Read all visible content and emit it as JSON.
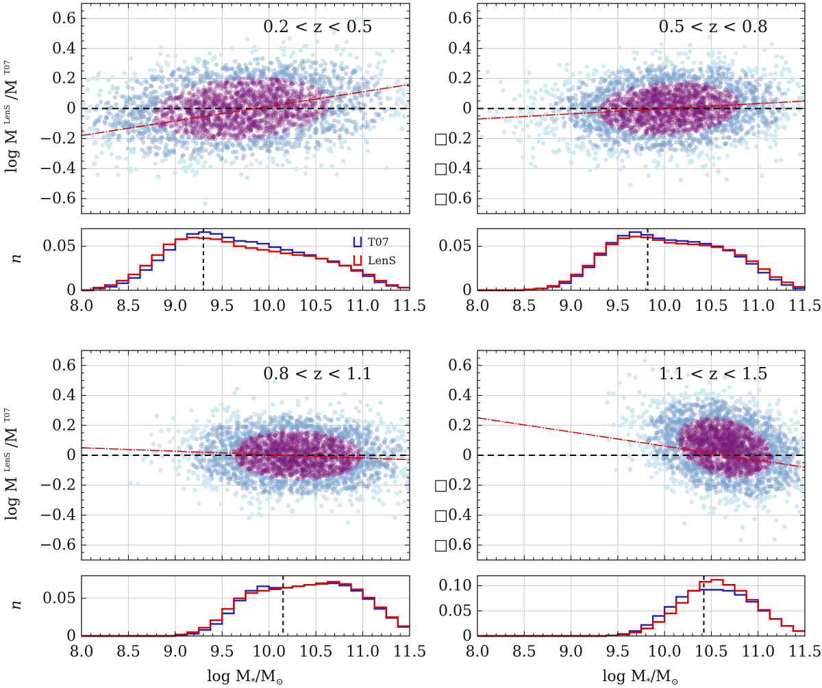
{
  "axis_labels": {
    "scatter_y_main": "log M",
    "scatter_y_sub1": "*",
    "scatter_y_sup1": "LenS",
    "scatter_y_slash": "/M",
    "scatter_y_sub2": "*",
    "scatter_y_sup2": "T07",
    "hist_y": "n",
    "x_main": "log M",
    "x_sub1": "*",
    "x_slash": "/M",
    "x_sub2": "⊙"
  },
  "legend": {
    "t07": "T07",
    "lens": "LenS"
  },
  "colors": {
    "t07": "#1f1fbf",
    "lens": "#e00000",
    "fit": "#e00000",
    "grid": "#c8c8c8",
    "scatter_light": "#cfe8f2",
    "scatter_mid": "#7fa3cf",
    "scatter_dense": "#7a1a7a"
  },
  "x_ticks": [
    "8.0",
    "8.5",
    "9.0",
    "9.5",
    "10.0",
    "10.5",
    "11.0",
    "11.5"
  ],
  "scatter_y_ticks_left": [
    "0.6",
    "0.4",
    "0.2",
    "0",
    "−0.2",
    "−0.4",
    "−0.6"
  ],
  "scatter_y_ticks_right": [
    "0.6",
    "0.4",
    "0.2",
    "0",
    "□0.2",
    "□0.4",
    "□0.6"
  ],
  "chart_data": [
    {
      "type": "scatter",
      "panel": "top-left",
      "label": "0.2 < z < 0.5",
      "xlim": [
        8.0,
        11.5
      ],
      "ylim": [
        -0.7,
        0.7
      ],
      "cloud": {
        "cx": 9.7,
        "cy": 0.0,
        "sx": 0.75,
        "sy": 0.16,
        "slope": 0.04
      },
      "fit_line": {
        "x": [
          8.0,
          11.5
        ],
        "y": [
          -0.18,
          0.16
        ]
      },
      "reference_line_y": 0,
      "histogram": {
        "ylim": [
          0,
          0.07
        ],
        "yticks": [
          "0",
          "0.05"
        ],
        "bin_edges": [
          8.0,
          8.125,
          8.25,
          8.375,
          8.5,
          8.625,
          8.75,
          8.875,
          9.0,
          9.125,
          9.25,
          9.375,
          9.5,
          9.625,
          9.75,
          9.875,
          10.0,
          10.125,
          10.25,
          10.375,
          10.5,
          10.625,
          10.75,
          10.875,
          11.0,
          11.125,
          11.25,
          11.375,
          11.5
        ],
        "t07": [
          0.0,
          0.002,
          0.004,
          0.008,
          0.014,
          0.023,
          0.034,
          0.046,
          0.058,
          0.064,
          0.066,
          0.064,
          0.06,
          0.056,
          0.055,
          0.053,
          0.049,
          0.046,
          0.043,
          0.04,
          0.036,
          0.033,
          0.028,
          0.023,
          0.016,
          0.009,
          0.005,
          0.003
        ],
        "lens": [
          0.0,
          0.003,
          0.006,
          0.011,
          0.018,
          0.028,
          0.04,
          0.052,
          0.058,
          0.06,
          0.059,
          0.058,
          0.055,
          0.05,
          0.048,
          0.046,
          0.044,
          0.042,
          0.04,
          0.039,
          0.036,
          0.032,
          0.028,
          0.022,
          0.018,
          0.011,
          0.006,
          0.003
        ],
        "median": 9.3
      }
    },
    {
      "type": "scatter",
      "panel": "top-right",
      "label": "0.5 < z < 0.8",
      "xlim": [
        8.0,
        11.5
      ],
      "ylim": [
        -0.7,
        0.7
      ],
      "cloud": {
        "cx": 10.05,
        "cy": 0.0,
        "sx": 0.6,
        "sy": 0.14,
        "slope": 0.03
      },
      "fit_line": {
        "x": [
          8.0,
          11.5
        ],
        "y": [
          -0.07,
          0.05
        ]
      },
      "reference_line_y": 0,
      "histogram": {
        "ylim": [
          0,
          0.07
        ],
        "yticks": [
          "0",
          "0.05"
        ],
        "bin_edges": [
          8.0,
          8.125,
          8.25,
          8.375,
          8.5,
          8.625,
          8.75,
          8.875,
          9.0,
          9.125,
          9.25,
          9.375,
          9.5,
          9.625,
          9.75,
          9.875,
          10.0,
          10.125,
          10.25,
          10.375,
          10.5,
          10.625,
          10.75,
          10.875,
          11.0,
          11.125,
          11.25,
          11.375,
          11.5
        ],
        "t07": [
          0.0,
          0.0,
          0.0,
          0.0,
          0.001,
          0.002,
          0.004,
          0.008,
          0.016,
          0.026,
          0.04,
          0.054,
          0.062,
          0.066,
          0.063,
          0.059,
          0.057,
          0.056,
          0.055,
          0.053,
          0.05,
          0.045,
          0.038,
          0.03,
          0.02,
          0.012,
          0.006,
          0.002
        ],
        "lens": [
          0.0,
          0.0,
          0.0,
          0.0,
          0.001,
          0.002,
          0.005,
          0.01,
          0.018,
          0.028,
          0.042,
          0.052,
          0.059,
          0.061,
          0.06,
          0.057,
          0.054,
          0.053,
          0.052,
          0.051,
          0.049,
          0.046,
          0.04,
          0.033,
          0.024,
          0.015,
          0.009,
          0.004
        ],
        "median": 9.82
      }
    },
    {
      "type": "scatter",
      "panel": "bottom-left",
      "label": "0.8 < z < 1.1",
      "xlim": [
        8.0,
        11.5
      ],
      "ylim": [
        -0.7,
        0.7
      ],
      "cloud": {
        "cx": 10.3,
        "cy": 0.0,
        "sx": 0.55,
        "sy": 0.13,
        "slope": -0.01
      },
      "fit_line": {
        "x": [
          8.0,
          11.5
        ],
        "y": [
          0.05,
          -0.03
        ]
      },
      "reference_line_y": 0,
      "histogram": {
        "ylim": [
          0,
          0.08
        ],
        "yticks": [
          "0",
          "0.05"
        ],
        "bin_edges": [
          8.0,
          8.125,
          8.25,
          8.375,
          8.5,
          8.625,
          8.75,
          8.875,
          9.0,
          9.125,
          9.25,
          9.375,
          9.5,
          9.625,
          9.75,
          9.875,
          10.0,
          10.125,
          10.25,
          10.375,
          10.5,
          10.625,
          10.75,
          10.875,
          11.0,
          11.125,
          11.25,
          11.375,
          11.5
        ],
        "t07": [
          0.0,
          0.0,
          0.0,
          0.0,
          0.0,
          0.0,
          0.0,
          0.0,
          0.001,
          0.003,
          0.008,
          0.016,
          0.03,
          0.047,
          0.06,
          0.066,
          0.064,
          0.064,
          0.066,
          0.068,
          0.069,
          0.07,
          0.067,
          0.06,
          0.049,
          0.036,
          0.024,
          0.012
        ],
        "lens": [
          0.0,
          0.0,
          0.0,
          0.0,
          0.0,
          0.0,
          0.0,
          0.0,
          0.002,
          0.005,
          0.011,
          0.021,
          0.036,
          0.05,
          0.057,
          0.06,
          0.062,
          0.064,
          0.066,
          0.068,
          0.07,
          0.072,
          0.069,
          0.062,
          0.051,
          0.038,
          0.025,
          0.013
        ],
        "median": 10.15
      }
    },
    {
      "type": "scatter",
      "panel": "bottom-right",
      "label": "1.1 < z < 1.5",
      "xlim": [
        8.0,
        11.5
      ],
      "ylim": [
        -0.7,
        0.7
      ],
      "cloud": {
        "cx": 10.65,
        "cy": 0.05,
        "sx": 0.4,
        "sy": 0.15,
        "slope": -0.12
      },
      "fit_line": {
        "x": [
          8.0,
          11.5
        ],
        "y": [
          0.25,
          -0.08
        ]
      },
      "reference_line_y": 0,
      "histogram": {
        "ylim": [
          0,
          0.12
        ],
        "yticks": [
          "0",
          "0.05",
          "0.10"
        ],
        "bin_edges": [
          8.0,
          8.125,
          8.25,
          8.375,
          8.5,
          8.625,
          8.75,
          8.875,
          9.0,
          9.125,
          9.25,
          9.375,
          9.5,
          9.625,
          9.75,
          9.875,
          10.0,
          10.125,
          10.25,
          10.375,
          10.5,
          10.625,
          10.75,
          10.875,
          11.0,
          11.125,
          11.25,
          11.375,
          11.5
        ],
        "t07": [
          0.0,
          0.0,
          0.0,
          0.0,
          0.0,
          0.0,
          0.0,
          0.0,
          0.0,
          0.0,
          0.0,
          0.001,
          0.004,
          0.01,
          0.022,
          0.04,
          0.058,
          0.078,
          0.09,
          0.092,
          0.092,
          0.09,
          0.082,
          0.068,
          0.05,
          0.034,
          0.02,
          0.01
        ],
        "lens": [
          0.0,
          0.0,
          0.0,
          0.0,
          0.0,
          0.0,
          0.0,
          0.0,
          0.0,
          0.0,
          0.0,
          0.001,
          0.003,
          0.007,
          0.015,
          0.028,
          0.045,
          0.066,
          0.09,
          0.108,
          0.112,
          0.102,
          0.09,
          0.072,
          0.052,
          0.034,
          0.02,
          0.01
        ],
        "median": 10.42
      }
    }
  ]
}
